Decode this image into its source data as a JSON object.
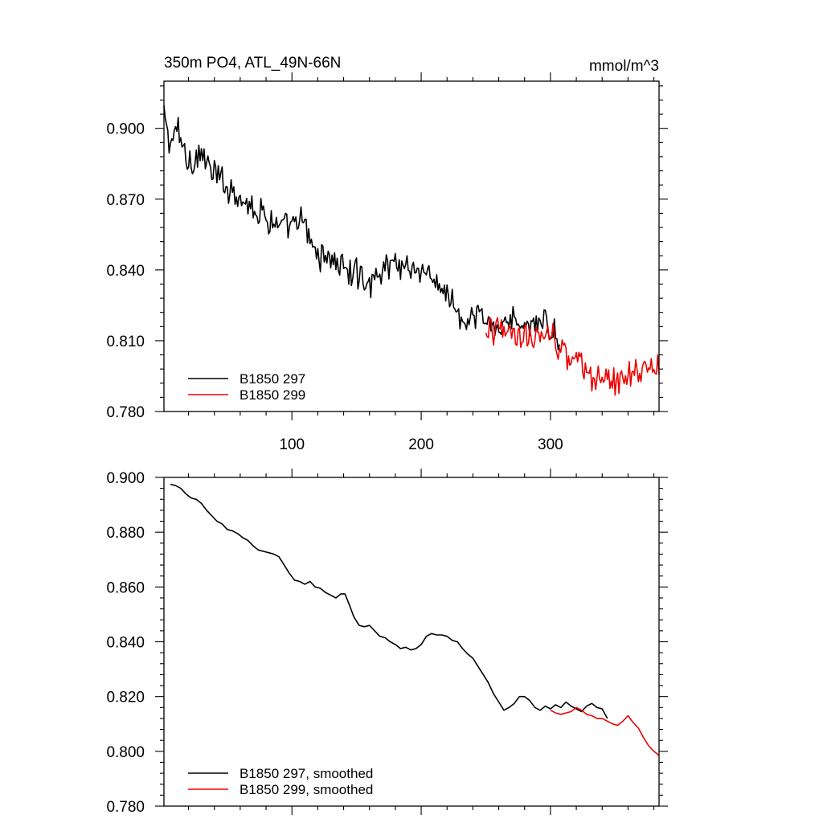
{
  "chart_data": [
    {
      "type": "line",
      "title_left": "350m PO4, ATL_49N-66N",
      "title_right": "mmol/m^3",
      "xlim": [
        1,
        384
      ],
      "ylim": [
        0.78,
        0.92
      ],
      "xticks": [
        100,
        200,
        300
      ],
      "yticks": [
        0.78,
        0.81,
        0.84,
        0.87,
        0.9
      ],
      "ytick_labels": [
        "0.780",
        "0.810",
        "0.840",
        "0.870",
        "0.900"
      ],
      "legend_position": "bottom-left",
      "series": [
        {
          "name": "B1850 297",
          "color": "#000000",
          "x_start": 1,
          "x_end": 307,
          "points": [
            [
              1,
              0.905
            ],
            [
              6,
              0.893
            ],
            [
              12,
              0.9
            ],
            [
              18,
              0.888
            ],
            [
              24,
              0.886
            ],
            [
              30,
              0.89
            ],
            [
              36,
              0.882
            ],
            [
              42,
              0.88
            ],
            [
              48,
              0.876
            ],
            [
              54,
              0.874
            ],
            [
              60,
              0.872
            ],
            [
              66,
              0.868
            ],
            [
              72,
              0.866
            ],
            [
              78,
              0.864
            ],
            [
              84,
              0.861
            ],
            [
              90,
              0.859
            ],
            [
              96,
              0.857
            ],
            [
              102,
              0.858
            ],
            [
              108,
              0.861
            ],
            [
              114,
              0.852
            ],
            [
              120,
              0.846
            ],
            [
              126,
              0.847
            ],
            [
              132,
              0.844
            ],
            [
              138,
              0.842
            ],
            [
              144,
              0.839
            ],
            [
              150,
              0.838
            ],
            [
              156,
              0.836
            ],
            [
              162,
              0.835
            ],
            [
              168,
              0.837
            ],
            [
              174,
              0.843
            ],
            [
              180,
              0.844
            ],
            [
              186,
              0.842
            ],
            [
              192,
              0.842
            ],
            [
              198,
              0.84
            ],
            [
              204,
              0.838
            ],
            [
              210,
              0.834
            ],
            [
              216,
              0.833
            ],
            [
              222,
              0.828
            ],
            [
              228,
              0.822
            ],
            [
              234,
              0.815
            ],
            [
              240,
              0.818
            ],
            [
              246,
              0.821
            ],
            [
              252,
              0.816
            ],
            [
              258,
              0.817
            ],
            [
              264,
              0.818
            ],
            [
              270,
              0.819
            ],
            [
              276,
              0.816
            ],
            [
              282,
              0.818
            ],
            [
              288,
              0.816
            ],
            [
              294,
              0.817
            ],
            [
              300,
              0.815
            ],
            [
              307,
              0.812
            ]
          ],
          "noise_amplitude": 0.0065
        },
        {
          "name": "B1850 299",
          "color": "#ee0000",
          "x_start": 250,
          "x_end": 384,
          "points": [
            [
              250,
              0.815
            ],
            [
              256,
              0.814
            ],
            [
              262,
              0.813
            ],
            [
              268,
              0.815
            ],
            [
              274,
              0.814
            ],
            [
              280,
              0.813
            ],
            [
              286,
              0.812
            ],
            [
              292,
              0.81
            ],
            [
              298,
              0.814
            ],
            [
              304,
              0.81
            ],
            [
              310,
              0.804
            ],
            [
              316,
              0.802
            ],
            [
              322,
              0.8
            ],
            [
              328,
              0.797
            ],
            [
              334,
              0.794
            ],
            [
              340,
              0.793
            ],
            [
              346,
              0.792
            ],
            [
              352,
              0.792
            ],
            [
              358,
              0.794
            ],
            [
              364,
              0.795
            ],
            [
              370,
              0.797
            ],
            [
              376,
              0.8
            ],
            [
              384,
              0.799
            ]
          ],
          "noise_amplitude": 0.0065
        }
      ]
    },
    {
      "type": "line",
      "xlim": [
        1,
        384
      ],
      "ylim": [
        0.78,
        0.9
      ],
      "xticks": [
        100,
        200,
        300
      ],
      "yticks": [
        0.78,
        0.8,
        0.82,
        0.84,
        0.86,
        0.88,
        0.9
      ],
      "ytick_labels": [
        "0.780",
        "0.800",
        "0.820",
        "0.840",
        "0.860",
        "0.880",
        "0.900"
      ],
      "legend_position": "bottom-left",
      "series": [
        {
          "name": "B1850 297, smoothed",
          "color": "#000000",
          "points": [
            [
              6,
              0.8975
            ],
            [
              10,
              0.897
            ],
            [
              14,
              0.896
            ],
            [
              18,
              0.894
            ],
            [
              22,
              0.8925
            ],
            [
              26,
              0.892
            ],
            [
              30,
              0.8905
            ],
            [
              34,
              0.888
            ],
            [
              38,
              0.886
            ],
            [
              42,
              0.884
            ],
            [
              46,
              0.883
            ],
            [
              50,
              0.881
            ],
            [
              54,
              0.8805
            ],
            [
              58,
              0.8795
            ],
            [
              62,
              0.878
            ],
            [
              66,
              0.877
            ],
            [
              70,
              0.875
            ],
            [
              74,
              0.8735
            ],
            [
              78,
              0.873
            ],
            [
              82,
              0.8725
            ],
            [
              86,
              0.872
            ],
            [
              90,
              0.871
            ],
            [
              94,
              0.868
            ],
            [
              98,
              0.865
            ],
            [
              102,
              0.8625
            ],
            [
              106,
              0.862
            ],
            [
              110,
              0.861
            ],
            [
              114,
              0.862
            ],
            [
              118,
              0.86
            ],
            [
              122,
              0.8595
            ],
            [
              126,
              0.858
            ],
            [
              130,
              0.857
            ],
            [
              134,
              0.856
            ],
            [
              138,
              0.8575
            ],
            [
              141,
              0.8575
            ],
            [
              144,
              0.854
            ],
            [
              148,
              0.849
            ],
            [
              152,
              0.846
            ],
            [
              156,
              0.8455
            ],
            [
              160,
              0.846
            ],
            [
              164,
              0.844
            ],
            [
              168,
              0.842
            ],
            [
              172,
              0.8415
            ],
            [
              176,
              0.84
            ],
            [
              180,
              0.839
            ],
            [
              184,
              0.8375
            ],
            [
              188,
              0.838
            ],
            [
              192,
              0.837
            ],
            [
              196,
              0.8375
            ],
            [
              200,
              0.839
            ],
            [
              204,
              0.842
            ],
            [
              208,
              0.843
            ],
            [
              212,
              0.8425
            ],
            [
              216,
              0.8425
            ],
            [
              220,
              0.842
            ],
            [
              224,
              0.8405
            ],
            [
              228,
              0.84
            ],
            [
              232,
              0.8375
            ],
            [
              236,
              0.8355
            ],
            [
              240,
              0.834
            ],
            [
              244,
              0.831
            ],
            [
              248,
              0.828
            ],
            [
              252,
              0.825
            ],
            [
              256,
              0.821
            ],
            [
              260,
              0.818
            ],
            [
              264,
              0.815
            ],
            [
              268,
              0.816
            ],
            [
              272,
              0.8175
            ],
            [
              276,
              0.82
            ],
            [
              280,
              0.82
            ],
            [
              284,
              0.8185
            ],
            [
              288,
              0.816
            ],
            [
              292,
              0.815
            ],
            [
              296,
              0.8165
            ],
            [
              300,
              0.8155
            ],
            [
              304,
              0.817
            ],
            [
              308,
              0.816
            ],
            [
              312,
              0.818
            ],
            [
              316,
              0.8165
            ],
            [
              320,
              0.8155
            ],
            [
              324,
              0.8145
            ],
            [
              328,
              0.8165
            ],
            [
              332,
              0.8175
            ],
            [
              336,
              0.816
            ],
            [
              340,
              0.8155
            ],
            [
              344,
              0.812
            ]
          ]
        },
        {
          "name": "B1850 299, smoothed",
          "color": "#ee0000",
          "points": [
            [
              300,
              0.815
            ],
            [
              304,
              0.814
            ],
            [
              308,
              0.8135
            ],
            [
              312,
              0.814
            ],
            [
              316,
              0.8145
            ],
            [
              320,
              0.816
            ],
            [
              324,
              0.815
            ],
            [
              328,
              0.8135
            ],
            [
              332,
              0.813
            ],
            [
              336,
              0.812
            ],
            [
              340,
              0.812
            ],
            [
              344,
              0.811
            ],
            [
              348,
              0.81
            ],
            [
              352,
              0.8095
            ],
            [
              356,
              0.811
            ],
            [
              360,
              0.813
            ],
            [
              364,
              0.8105
            ],
            [
              368,
              0.8085
            ],
            [
              372,
              0.805
            ],
            [
              376,
              0.802
            ],
            [
              380,
              0.8
            ],
            [
              384,
              0.7985
            ]
          ]
        }
      ]
    }
  ]
}
